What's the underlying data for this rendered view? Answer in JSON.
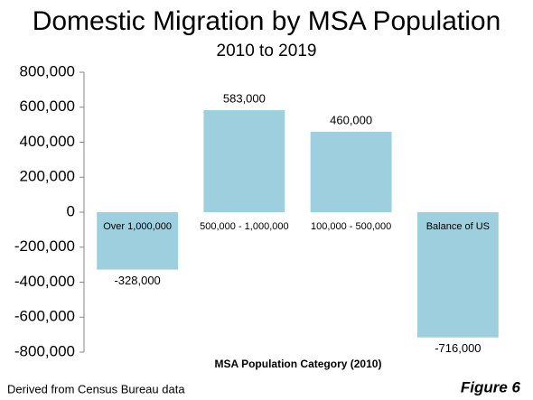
{
  "chart_data": {
    "type": "bar",
    "title": "Domestic Migration by MSA Population",
    "subtitle": "2010 to 2019",
    "x_label": "MSA Population Category (2010)",
    "source": "Derived from Census Bureau data",
    "figure_label": "Figure 6",
    "categories": [
      "Over 1,000,000",
      "500,000 - 1,000,000",
      "100,000 - 500,000",
      "Balance of US"
    ],
    "values": [
      -328000,
      583000,
      460000,
      -716000
    ],
    "value_labels": [
      "-328,000",
      "583,000",
      "460,000",
      "-716,000"
    ],
    "color": "#9dcfdf",
    "ylim": [
      -800000,
      800000
    ],
    "yticks": [
      {
        "value": -800000,
        "label": "-800,000"
      },
      {
        "value": -600000,
        "label": "-600,000"
      },
      {
        "value": -400000,
        "label": "-400,000"
      },
      {
        "value": -200000,
        "label": "-200,000"
      },
      0,
      {
        "value": 200000,
        "label": "200,000"
      },
      {
        "value": 400000,
        "label": "400,000"
      },
      {
        "value": 600000,
        "label": "600,000"
      },
      {
        "value": 800000,
        "label": "800,000"
      }
    ],
    "grid": false
  }
}
